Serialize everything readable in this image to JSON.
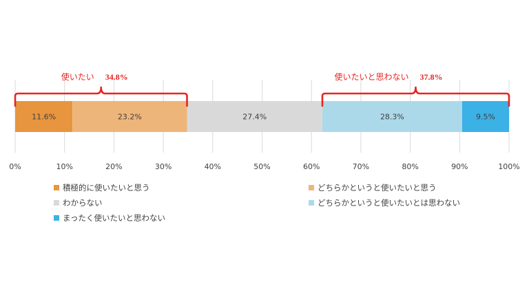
{
  "chart_data": {
    "type": "bar",
    "orientation": "horizontal",
    "stacked": "percent",
    "xlim": [
      0,
      100
    ],
    "x_tick_values": [
      0,
      10,
      20,
      30,
      40,
      50,
      60,
      70,
      80,
      90,
      100
    ],
    "x_tick_labels": [
      "0%",
      "10%",
      "20%",
      "30%",
      "40%",
      "50%",
      "60%",
      "70%",
      "80%",
      "90%",
      "100%"
    ],
    "grid": true,
    "legend_placement": "bottom",
    "series": [
      {
        "name": "積極的に使いたいと思う",
        "value": 11.6,
        "label": "11.6%",
        "color": "#E8953F"
      },
      {
        "name": "どちらかというと使いたいと思う",
        "value": 23.2,
        "label": "23.2%",
        "color": "#EEB57A"
      },
      {
        "name": "わからない",
        "value": 27.4,
        "label": "27.4%",
        "color": "#D9D9D9"
      },
      {
        "name": "どちらかというと使いたいとは思わない",
        "value": 28.3,
        "label": "28.3%",
        "color": "#ACD9EA"
      },
      {
        "name": "まったく使いたいと思わない",
        "value": 9.5,
        "label": "9.5%",
        "color": "#3BB1E6"
      }
    ],
    "groups": [
      {
        "text": "使いたい",
        "value": "34.8%",
        "from": 0,
        "to": 34.8
      },
      {
        "text": "使いたいと思わない",
        "value": "37.8%",
        "from": 62.2,
        "to": 100
      }
    ],
    "annotation_color": "#E8231F"
  }
}
